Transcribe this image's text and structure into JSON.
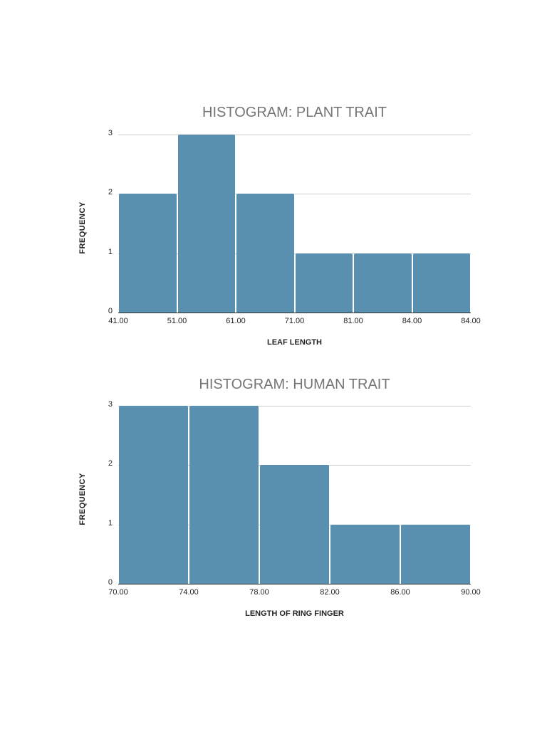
{
  "chart_data": [
    {
      "type": "bar",
      "title": "HISTOGRAM: PLANT TRAIT",
      "xlabel": "LEAF LENGTH",
      "ylabel": "FREQUENCY",
      "categories": [
        "41.00-51.00",
        "51.00-61.00",
        "61.00-71.00",
        "71.00-81.00",
        "81.00-84.00",
        "84.00-84.00"
      ],
      "x_ticks": [
        "41.00",
        "51.00",
        "61.00",
        "71.00",
        "81.00",
        "84.00",
        "84.00"
      ],
      "y_ticks": [
        "0",
        "1",
        "2",
        "3"
      ],
      "values": [
        2,
        3,
        2,
        1,
        1,
        1
      ],
      "ylim": [
        0,
        3
      ],
      "grid": true,
      "legend": "none",
      "bar_color": "#5990b0"
    },
    {
      "type": "bar",
      "title": "HISTOGRAM: HUMAN TRAIT",
      "xlabel": "LENGTH OF RING FINGER",
      "ylabel": "FREQUENCY",
      "categories": [
        "70.00-74.00",
        "74.00-78.00",
        "78.00-82.00",
        "82.00-86.00",
        "86.00-90.00"
      ],
      "x_ticks": [
        "70.00",
        "74.00",
        "78.00",
        "82.00",
        "86.00",
        "90.00"
      ],
      "y_ticks": [
        "0",
        "1",
        "2",
        "3"
      ],
      "values": [
        3,
        3,
        2,
        1,
        1
      ],
      "ylim": [
        0,
        3
      ],
      "grid": true,
      "legend": "none",
      "bar_color": "#5990b0"
    }
  ]
}
